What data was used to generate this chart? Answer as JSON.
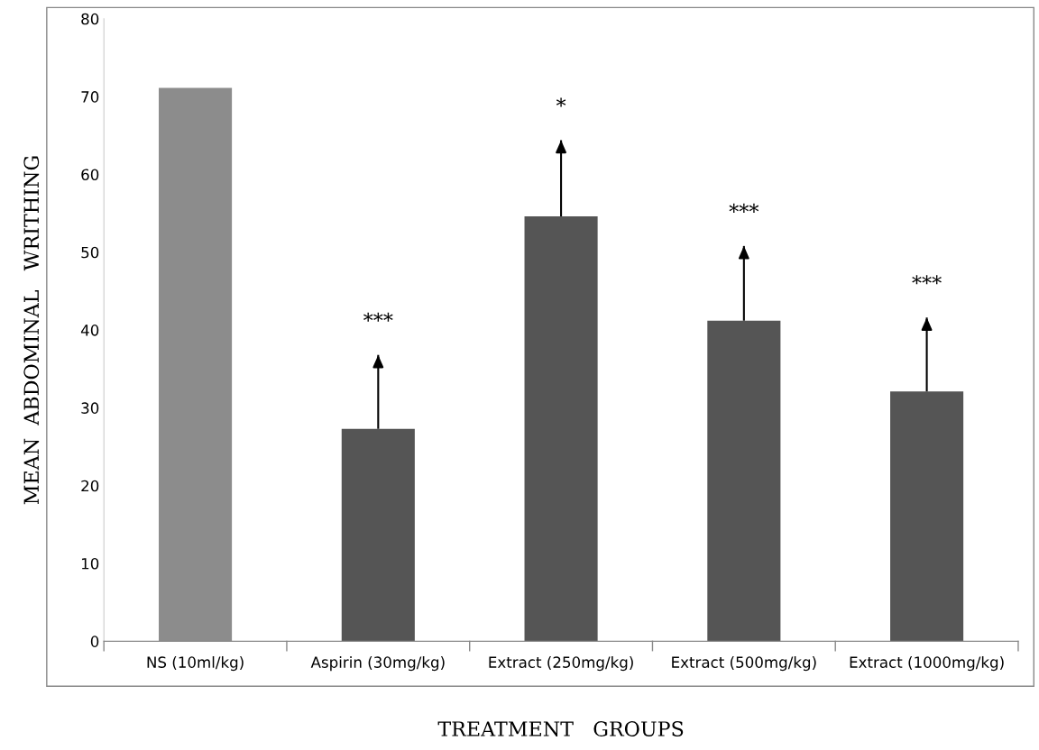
{
  "chart_data": {
    "type": "bar",
    "xlabel": "TREATMENT   GROUPS",
    "ylabel": "MEAN  ABDOMINAL   WRITHING",
    "categories": [
      "NS (10ml/kg)",
      "Aspirin (30mg/kg)",
      "Extract (250mg/kg)",
      "Extract (500mg/kg)",
      "Extract (1000mg/kg)"
    ],
    "values": [
      71.1,
      27.3,
      54.6,
      41.2,
      32.1
    ],
    "errors": [
      null,
      [
        27.3,
        36.8
      ],
      [
        54.6,
        64.4
      ],
      [
        41.2,
        50.8
      ],
      [
        32.1,
        41.6
      ]
    ],
    "colors": [
      "#8c8c8c",
      "#555555",
      "#555555",
      "#555555",
      "#555555"
    ],
    "ylim": [
      0,
      80
    ],
    "yticks": [
      0,
      10,
      20,
      30,
      40,
      50,
      60,
      70,
      80
    ],
    "grid": false,
    "legend": false,
    "annotations": [
      "***",
      "*",
      "***",
      "***"
    ]
  }
}
